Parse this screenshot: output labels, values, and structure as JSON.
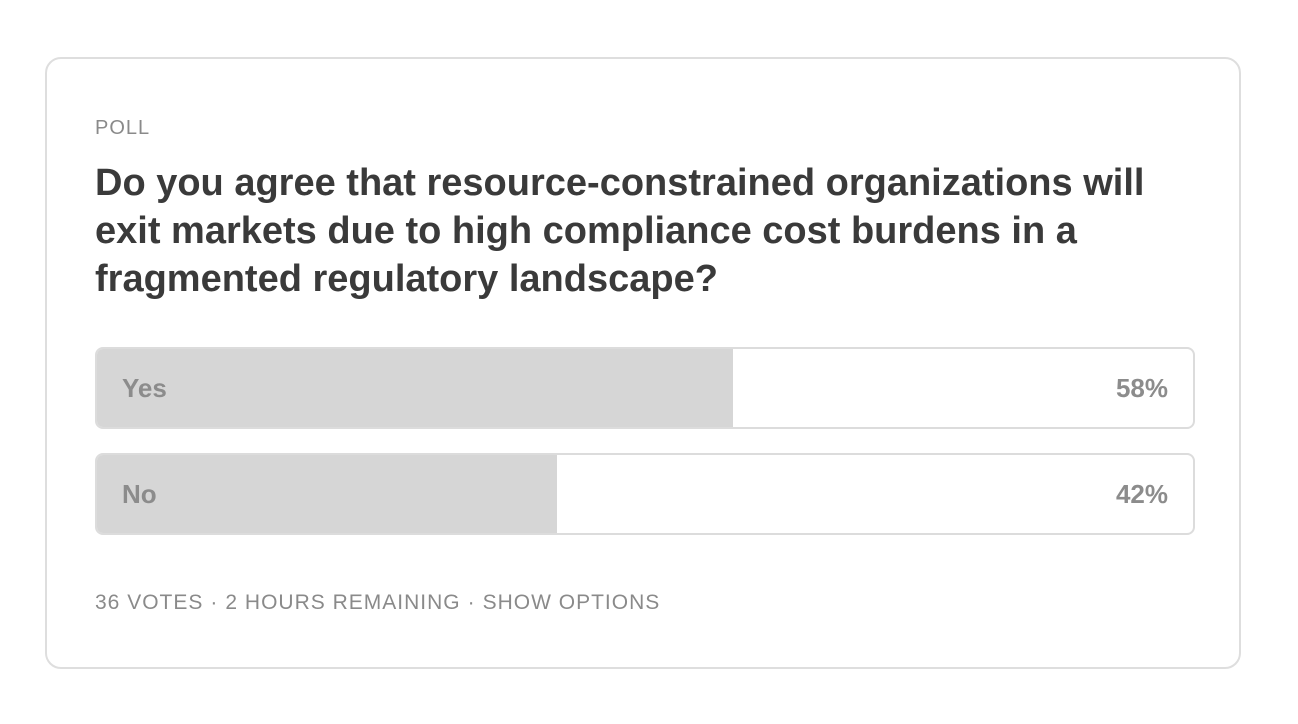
{
  "poll": {
    "label": "POLL",
    "question": "Do you agree that resource-constrained organizations will exit markets due to high compliance cost burdens in a fragmented regulatory landscape?",
    "options": [
      {
        "label": "Yes",
        "percent_text": "58%",
        "share": 0.58
      },
      {
        "label": "No",
        "percent_text": "42%",
        "share": 0.42
      }
    ],
    "footer": {
      "votes": "36 VOTES",
      "separator": "·",
      "time_remaining": "2 HOURS REMAINING",
      "show_options": "SHOW OPTIONS"
    }
  },
  "colors": {
    "fill": "#d6d6d6",
    "border": "#dcdcdc",
    "text_muted": "#8a8a8a",
    "question_text": "#3a3a3a"
  }
}
